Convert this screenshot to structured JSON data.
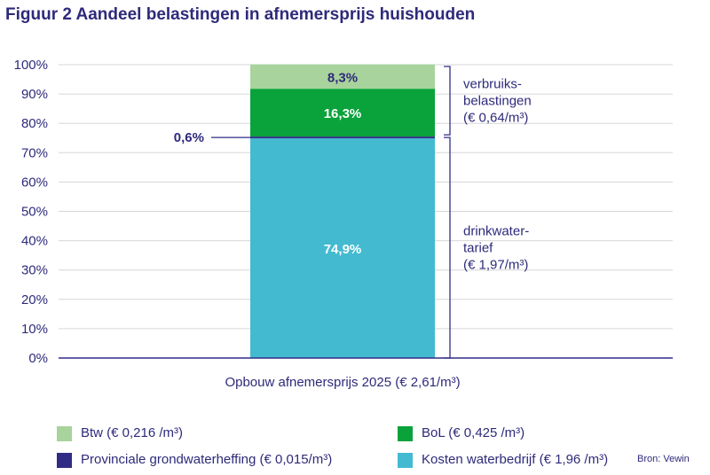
{
  "title": "Figuur 2 Aandeel belastingen in afnemersprijs huishouden",
  "source": "Bron: Vewin",
  "colors": {
    "btw": "#a8d39c",
    "bol": "#0aa23b",
    "provinciale": "#302c86",
    "kosten": "#43bad0",
    "text": "#2e2a7a",
    "grid": "#d6d6d6"
  },
  "chart_data": {
    "type": "bar",
    "stacked": true,
    "categories": [
      "Opbouw afnemersprijs 2025 (€ 2,61/m³)"
    ],
    "ylim": [
      0,
      100
    ],
    "yticks": [
      "0%",
      "10%",
      "20%",
      "30%",
      "40%",
      "50%",
      "60%",
      "70%",
      "80%",
      "90%",
      "100%"
    ],
    "grid": true,
    "legend_position": "bottom",
    "series": [
      {
        "name": "Kosten waterbedrijf (€ 1,96 /m³)",
        "values": [
          74.9
        ],
        "label": "74,9%",
        "color": "#43bad0"
      },
      {
        "name": "Provinciale grondwaterheffing (€ 0,015/m³)",
        "values": [
          0.6
        ],
        "label": "0,6%",
        "color": "#302c86"
      },
      {
        "name": "BoL (€ 0,425 /m³)",
        "values": [
          16.3
        ],
        "label": "16,3%",
        "color": "#0aa23b"
      },
      {
        "name": "Btw (€ 0,216 /m³)",
        "values": [
          8.3
        ],
        "label": "8,3%",
        "color": "#a8d39c"
      }
    ],
    "brackets": [
      {
        "lines": [
          "verbruiks-",
          "belastingen",
          "(€ 0,64/m³)"
        ],
        "from": 75.5,
        "to": 100
      },
      {
        "lines": [
          "drinkwater-",
          "tarief",
          "(€ 1,97/m³)"
        ],
        "from": 0,
        "to": 75.5
      }
    ]
  },
  "legend": [
    {
      "label": "Btw (€ 0,216 /m³)",
      "color": "#a8d39c"
    },
    {
      "label": "BoL (€ 0,425 /m³)",
      "color": "#0aa23b"
    },
    {
      "label": "Provinciale grondwaterheffing (€ 0,015/m³)",
      "color": "#302c86"
    },
    {
      "label": "Kosten waterbedrijf (€ 1,96 /m³)",
      "color": "#43bad0"
    }
  ]
}
